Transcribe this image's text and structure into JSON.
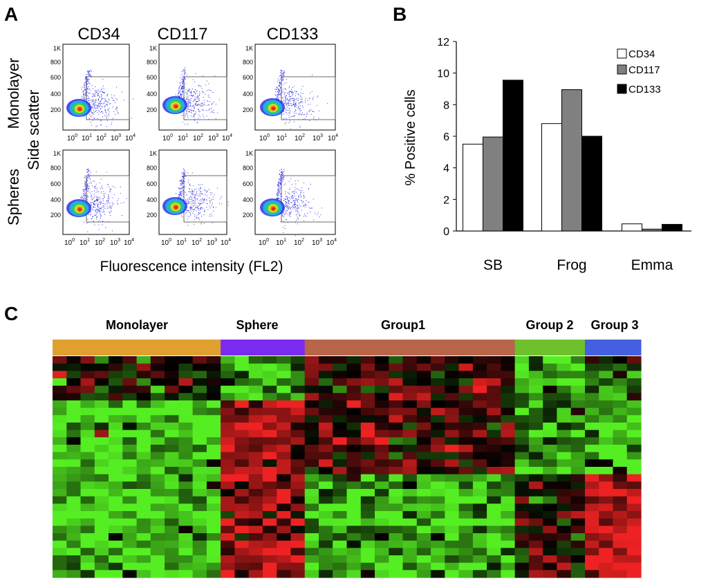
{
  "panel_a": {
    "letter": "A",
    "columns": [
      "CD34",
      "CD117",
      "CD133"
    ],
    "rows": [
      "Monolayer",
      "Spheres"
    ],
    "ylabel": "Side scatter",
    "xlabel": "Fluorescence intensity (FL2)",
    "yticks_top": [
      "1K",
      "800",
      "600",
      "400",
      "200"
    ],
    "yticks_bottom": [
      "1K",
      "800",
      "600",
      "400",
      "200"
    ],
    "xticks": [
      {
        "base": "10",
        "exp": "0"
      },
      {
        "base": "10",
        "exp": "1"
      },
      {
        "base": "10",
        "exp": "2"
      },
      {
        "base": "10",
        "exp": "3"
      },
      {
        "base": "10",
        "exp": "4"
      }
    ],
    "density_colors": [
      "#2e2ee8",
      "#1fb8e6",
      "#33d14a",
      "#f0e020",
      "#f07a14",
      "#e01e1e"
    ]
  },
  "panel_b": {
    "letter": "B",
    "legend_border": "#000000",
    "chart_data": {
      "type": "bar",
      "title": "",
      "xlabel": "",
      "ylabel": "% Positive cells",
      "ylim": [
        0,
        12
      ],
      "yticks": [
        0,
        2,
        4,
        6,
        8,
        10,
        12
      ],
      "categories": [
        "SB",
        "Frog",
        "Emma"
      ],
      "legend_position": "top-right",
      "series": [
        {
          "name": "CD34",
          "color": "#ffffff",
          "values": [
            5.5,
            6.8,
            0.45
          ]
        },
        {
          "name": "CD117",
          "color": "#808080",
          "values": [
            5.95,
            8.95,
            0.12
          ]
        },
        {
          "name": "CD133",
          "color": "#000000",
          "values": [
            9.55,
            6.0,
            0.42
          ]
        }
      ]
    }
  },
  "panel_c": {
    "letter": "C",
    "groups": [
      {
        "name": "Monolayer",
        "color": "#e0a030",
        "columns": 12
      },
      {
        "name": "Sphere",
        "color": "#7b2bf0",
        "columns": 6
      },
      {
        "name": "Group1",
        "color": "#b8654a",
        "columns": 15
      },
      {
        "name": "Group 2",
        "color": "#6ec02c",
        "columns": 5
      },
      {
        "name": "Group 3",
        "color": "#4460e0",
        "columns": 4
      }
    ],
    "n_rows": 30,
    "heat_low": "#55ee22",
    "heat_mid": "#000000",
    "heat_high": "#ee2222"
  }
}
